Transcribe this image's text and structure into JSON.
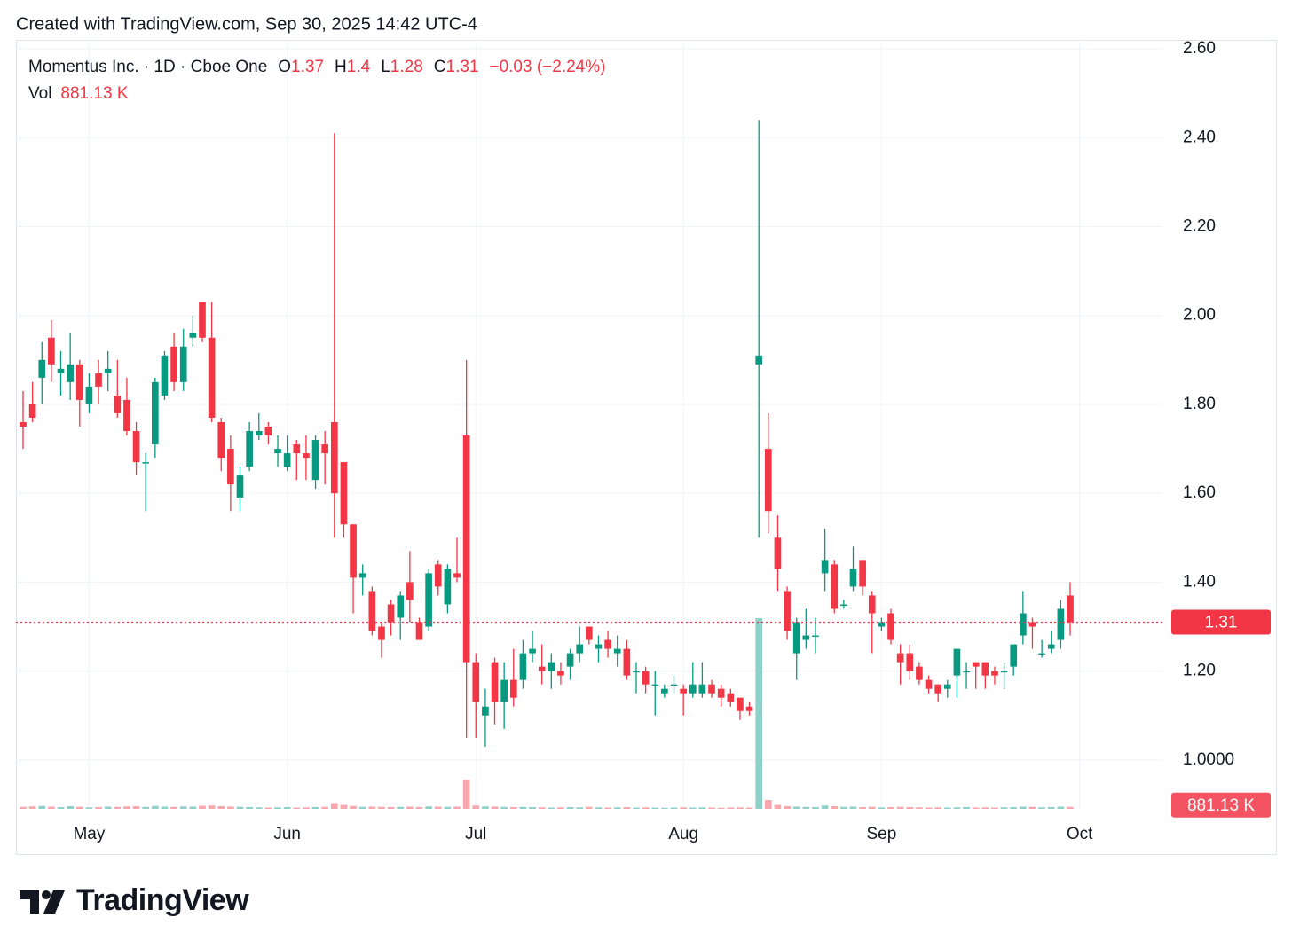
{
  "credit": "Created with TradingView.com, Sep 30, 2025 14:42 UTC-4",
  "brand": "TradingView",
  "chart_data": {
    "type": "candlestick",
    "title": "Momentus Inc. · 1D · Cboe One",
    "legend_letters": [
      "O",
      "H",
      "L",
      "C"
    ],
    "change_text": "−0.03 (−2.24%)",
    "up_color": "#089981",
    "down_color": "#f23645",
    "volume_up_color": "#8fd1c9",
    "volume_down_color": "#f7a7ad",
    "categories": [
      null,
      null,
      null,
      null,
      null,
      null,
      null,
      "May",
      null,
      null,
      null,
      null,
      null,
      null,
      null,
      null,
      null,
      null,
      null,
      null,
      null,
      null,
      null,
      null,
      null,
      null,
      null,
      null,
      "Jun",
      null,
      null,
      null,
      null,
      null,
      null,
      null,
      null,
      null,
      null,
      null,
      null,
      null,
      null,
      null,
      null,
      null,
      null,
      null,
      "Jul",
      null,
      null,
      null,
      null,
      null,
      null,
      null,
      null,
      null,
      null,
      null,
      null,
      null,
      null,
      null,
      null,
      null,
      null,
      null,
      null,
      null,
      "Aug",
      null,
      null,
      null,
      null,
      null,
      null,
      null,
      null,
      null,
      null,
      null,
      null,
      null,
      null,
      null,
      null,
      null,
      null,
      null,
      null,
      "Sep",
      null,
      null,
      null,
      null,
      null,
      null,
      null,
      null,
      null,
      null,
      null,
      null,
      null,
      null,
      null,
      null,
      null,
      null,
      null,
      null
    ],
    "next_category": "Oct",
    "open": [
      1.76,
      1.8,
      1.86,
      1.95,
      1.87,
      1.85,
      1.89,
      1.8,
      1.87,
      1.87,
      1.82,
      1.81,
      1.74,
      1.67,
      1.71,
      1.82,
      1.93,
      1.85,
      1.95,
      2.03,
      1.95,
      1.76,
      1.7,
      1.59,
      1.66,
      1.73,
      1.75,
      1.69,
      1.66,
      1.71,
      1.69,
      1.63,
      1.71,
      1.76,
      1.67,
      1.53,
      1.41,
      1.38,
      1.3,
      1.35,
      1.32,
      1.4,
      1.31,
      1.3,
      1.44,
      1.35,
      1.42,
      1.73,
      1.22,
      1.1,
      1.22,
      1.13,
      1.18,
      1.18,
      1.24,
      1.21,
      1.2,
      1.2,
      1.21,
      1.24,
      1.3,
      1.25,
      1.27,
      1.24,
      1.25,
      1.2,
      1.2,
      1.17,
      1.15,
      1.17,
      1.16,
      1.15,
      1.15,
      1.17,
      1.16,
      1.15,
      1.14,
      1.12,
      1.89,
      1.7,
      1.5,
      1.38,
      1.24,
      1.27,
      1.28,
      1.42,
      1.44,
      1.35,
      1.39,
      1.45,
      1.37,
      1.3,
      1.33,
      1.24,
      1.24,
      1.21,
      1.18,
      1.17,
      1.16,
      1.19,
      1.2,
      1.22,
      1.22,
      1.2,
      1.2,
      1.21,
      1.28,
      1.31,
      1.24,
      1.25,
      1.27,
      1.37
    ],
    "high": [
      1.83,
      1.85,
      1.94,
      1.99,
      1.92,
      1.96,
      1.9,
      1.87,
      1.9,
      1.92,
      1.9,
      1.86,
      1.76,
      1.69,
      1.86,
      1.92,
      1.96,
      1.97,
      2.0,
      2.03,
      2.03,
      1.77,
      1.73,
      1.66,
      1.76,
      1.78,
      1.76,
      1.73,
      1.73,
      1.72,
      1.73,
      1.73,
      1.74,
      2.41,
      1.67,
      1.53,
      1.44,
      1.39,
      1.31,
      1.36,
      1.38,
      1.47,
      1.32,
      1.43,
      1.45,
      1.44,
      1.5,
      1.9,
      1.24,
      1.16,
      1.23,
      1.22,
      1.25,
      1.27,
      1.29,
      1.26,
      1.24,
      1.22,
      1.25,
      1.3,
      1.3,
      1.28,
      1.29,
      1.28,
      1.27,
      1.22,
      1.21,
      1.2,
      1.17,
      1.19,
      1.17,
      1.22,
      1.22,
      1.18,
      1.17,
      1.16,
      1.14,
      1.13,
      2.44,
      1.78,
      1.55,
      1.39,
      1.32,
      1.34,
      1.32,
      1.52,
      1.45,
      1.36,
      1.48,
      1.45,
      1.38,
      1.32,
      1.34,
      1.26,
      1.26,
      1.22,
      1.19,
      1.17,
      1.18,
      1.25,
      1.22,
      1.22,
      1.22,
      1.21,
      1.22,
      1.26,
      1.38,
      1.32,
      1.27,
      1.29,
      1.36,
      1.4
    ],
    "low": [
      1.7,
      1.76,
      1.8,
      1.85,
      1.82,
      1.81,
      1.75,
      1.78,
      1.8,
      1.83,
      1.77,
      1.73,
      1.64,
      1.56,
      1.68,
      1.81,
      1.83,
      1.83,
      1.93,
      1.94,
      1.76,
      1.65,
      1.56,
      1.56,
      1.65,
      1.72,
      1.71,
      1.66,
      1.65,
      1.63,
      1.63,
      1.61,
      1.62,
      1.5,
      1.5,
      1.33,
      1.37,
      1.28,
      1.23,
      1.28,
      1.27,
      1.31,
      1.27,
      1.29,
      1.37,
      1.33,
      1.4,
      1.05,
      1.05,
      1.03,
      1.08,
      1.07,
      1.12,
      1.16,
      1.22,
      1.17,
      1.16,
      1.17,
      1.18,
      1.22,
      1.26,
      1.22,
      1.23,
      1.21,
      1.18,
      1.15,
      1.15,
      1.1,
      1.14,
      1.15,
      1.1,
      1.14,
      1.14,
      1.14,
      1.12,
      1.12,
      1.09,
      1.1,
      1.5,
      1.51,
      1.38,
      1.27,
      1.18,
      1.25,
      1.24,
      1.38,
      1.33,
      1.34,
      1.38,
      1.37,
      1.24,
      1.29,
      1.26,
      1.17,
      1.18,
      1.17,
      1.15,
      1.13,
      1.14,
      1.14,
      1.16,
      1.16,
      1.16,
      1.17,
      1.16,
      1.19,
      1.26,
      1.25,
      1.23,
      1.24,
      1.25,
      1.28
    ],
    "close": [
      1.75,
      1.77,
      1.9,
      1.89,
      1.88,
      1.89,
      1.81,
      1.84,
      1.84,
      1.88,
      1.78,
      1.74,
      1.67,
      1.67,
      1.85,
      1.91,
      1.85,
      1.93,
      1.96,
      1.95,
      1.77,
      1.68,
      1.62,
      1.64,
      1.74,
      1.74,
      1.73,
      1.7,
      1.69,
      1.69,
      1.68,
      1.72,
      1.69,
      1.6,
      1.53,
      1.41,
      1.42,
      1.29,
      1.27,
      1.31,
      1.37,
      1.36,
      1.27,
      1.42,
      1.39,
      1.43,
      1.41,
      1.22,
      1.13,
      1.12,
      1.13,
      1.18,
      1.14,
      1.24,
      1.25,
      1.2,
      1.22,
      1.19,
      1.24,
      1.26,
      1.27,
      1.26,
      1.25,
      1.25,
      1.19,
      1.2,
      1.17,
      1.17,
      1.16,
      1.17,
      1.15,
      1.17,
      1.17,
      1.15,
      1.14,
      1.13,
      1.11,
      1.11,
      1.91,
      1.56,
      1.43,
      1.29,
      1.31,
      1.28,
      1.28,
      1.45,
      1.34,
      1.35,
      1.43,
      1.39,
      1.33,
      1.31,
      1.27,
      1.22,
      1.2,
      1.18,
      1.16,
      1.15,
      1.17,
      1.25,
      1.2,
      1.21,
      1.19,
      1.19,
      1.2,
      1.26,
      1.33,
      1.3,
      1.24,
      1.26,
      1.34,
      1.31
    ],
    "volume": {
      "name": "Vol",
      "last_label": "881.13 K",
      "values": [
        900000,
        1100000,
        1300000,
        1000000,
        800000,
        1200000,
        900000,
        700000,
        800000,
        1000000,
        900000,
        1100000,
        1200000,
        900000,
        1300000,
        1000000,
        900000,
        1100000,
        1000000,
        1400000,
        1500000,
        1200000,
        1000000,
        900000,
        800000,
        700000,
        600000,
        700000,
        800000,
        600000,
        700000,
        800000,
        900000,
        2600000,
        1800000,
        1300000,
        900000,
        1000000,
        900000,
        800000,
        900000,
        1000000,
        800000,
        1100000,
        1000000,
        900000,
        1000000,
        13000000,
        1500000,
        1100000,
        1000000,
        900000,
        800000,
        900000,
        800000,
        700000,
        600000,
        700000,
        800000,
        700000,
        900000,
        700000,
        600000,
        700000,
        800000,
        600000,
        700000,
        600000,
        500000,
        600000,
        700000,
        600000,
        700000,
        600000,
        500000,
        600000,
        700000,
        600000,
        86000000,
        4000000,
        1800000,
        1200000,
        1000000,
        900000,
        800000,
        1500000,
        1200000,
        900000,
        1000000,
        800000,
        900000,
        700000,
        800000,
        900000,
        800000,
        700000,
        600000,
        700000,
        600000,
        700000,
        800000,
        600000,
        700000,
        600000,
        700000,
        800000,
        1000000,
        900000,
        700000,
        800000,
        1000000,
        881130
      ]
    },
    "volume_lim": [
      0,
      100000000
    ],
    "ylim": [
      0.89,
      2.62
    ],
    "yticks": [
      {
        "value": 1.0,
        "label": "1.0000"
      },
      {
        "value": 1.2,
        "label": "1.20"
      },
      {
        "value": 1.4,
        "label": "1.40"
      },
      {
        "value": 1.6,
        "label": "1.60"
      },
      {
        "value": 1.8,
        "label": "1.80"
      },
      {
        "value": 2.0,
        "label": "2.00"
      },
      {
        "value": 2.2,
        "label": "2.20"
      },
      {
        "value": 2.4,
        "label": "2.40"
      },
      {
        "value": 2.6,
        "label": "2.60"
      }
    ],
    "grid": true,
    "last_price_line": true
  }
}
